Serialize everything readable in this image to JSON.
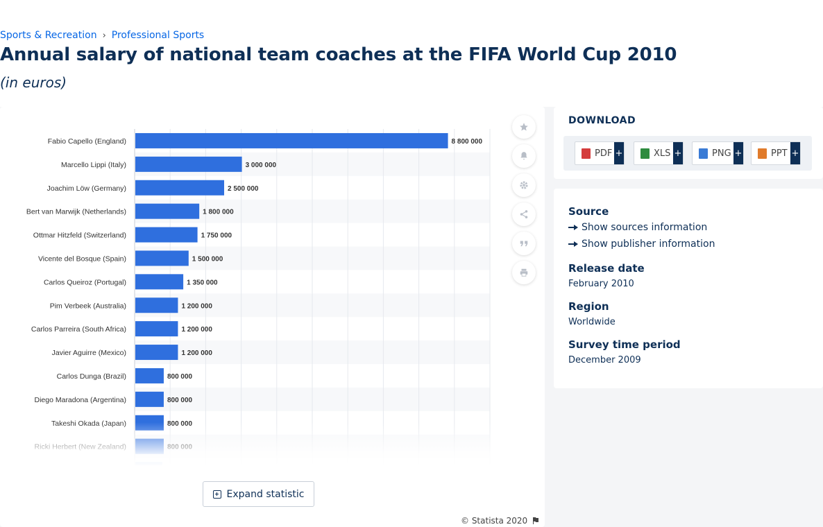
{
  "breadcrumb": {
    "items": [
      "Sports & Recreation",
      "Professional Sports"
    ]
  },
  "header": {
    "title": "Annual salary of national team coaches at the FIFA World Cup 2010",
    "subtitle": "(in euros)"
  },
  "toolbar": {
    "icons": [
      "star-icon",
      "bell-icon",
      "gear-icon",
      "share-icon",
      "quote-icon",
      "print-icon"
    ]
  },
  "expand": {
    "label": "Expand statistic"
  },
  "copyright": {
    "text": "© Statista 2020"
  },
  "download": {
    "title": "DOWNLOAD",
    "formats": [
      {
        "label": "PDF",
        "color": "#d43c3c"
      },
      {
        "label": "XLS",
        "color": "#2e8b3e"
      },
      {
        "label": "PNG",
        "color": "#3a7bd5"
      },
      {
        "label": "PPT",
        "color": "#e07b2b"
      }
    ],
    "plus": "+"
  },
  "info": {
    "source_title": "Source",
    "show_sources": "Show sources information",
    "show_publisher": "Show publisher information",
    "release_title": "Release date",
    "release_value": "February 2010",
    "region_title": "Region",
    "region_value": "Worldwide",
    "survey_title": "Survey time period",
    "survey_value": "December 2009"
  },
  "colors": {
    "bar": "#2f6fde",
    "title": "#0e2f56",
    "link": "#0666e5"
  },
  "chart_data": {
    "type": "bar",
    "orientation": "horizontal",
    "categories": [
      "Fabio Capello (England)",
      "Marcello Lippi (Italy)",
      "Joachim Löw (Germany)",
      "Bert van Marwijk (Netherlands)",
      "Ottmar Hitzfeld (Switzerland)",
      "Vicente del Bosque (Spain)",
      "Carlos Queiroz (Portugal)",
      "Pim Verbeek (Australia)",
      "Carlos Parreira (South Africa)",
      "Javier Aguirre (Mexico)",
      "Carlos Dunga (Brazil)",
      "Diego Maradona (Argentina)",
      "Takeshi Okada (Japan)",
      "Ricki Herbert (New Zealand)"
    ],
    "values": [
      8800000,
      3000000,
      2500000,
      1800000,
      1750000,
      1500000,
      1350000,
      1200000,
      1200000,
      1200000,
      800000,
      800000,
      800000,
      800000
    ],
    "value_labels": [
      "8 800 000",
      "3 000 000",
      "2 500 000",
      "1 800 000",
      "1 750 000",
      "1 500 000",
      "1 350 000",
      "1 200 000",
      "1 200 000",
      "1 200 000",
      "800 000",
      "800 000",
      "800 000",
      "800 000"
    ],
    "xlim": [
      0,
      10000000
    ],
    "grid": true,
    "legend": "none"
  }
}
